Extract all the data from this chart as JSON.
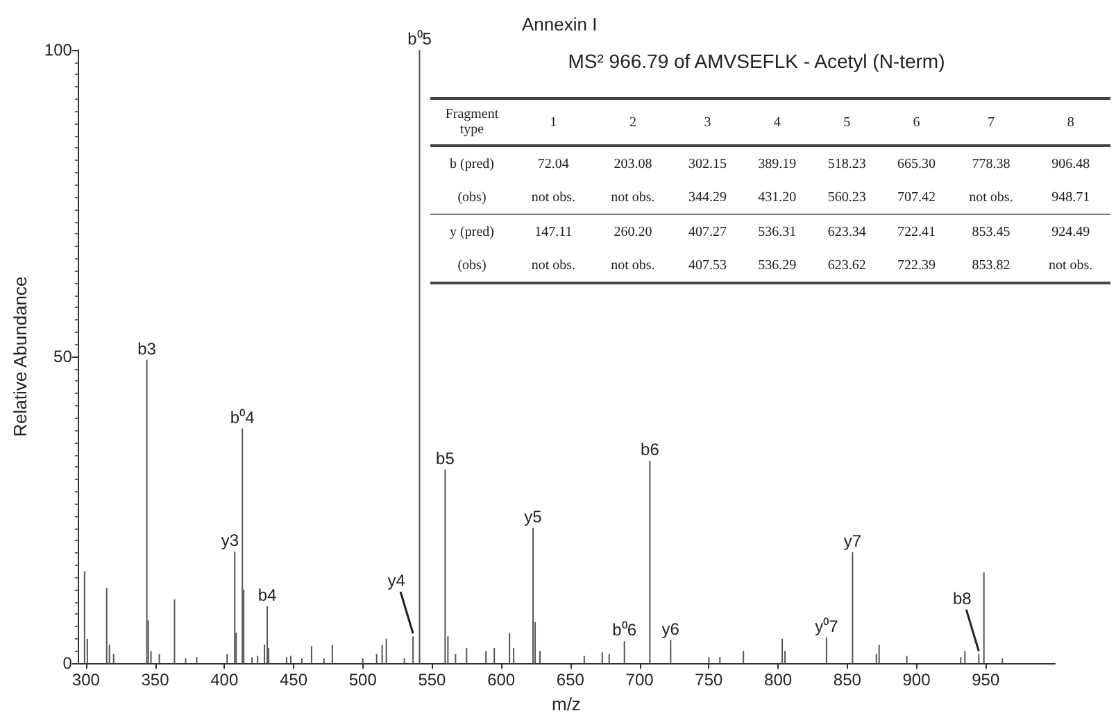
{
  "chart_data": {
    "type": "bar",
    "title": "Annexin I",
    "subtitle": "MS² 966.79 of AMVSEFLK - Acetyl (N-term)",
    "xlabel": "m/z",
    "ylabel": "Relative Abundance",
    "x": [
      299,
      301,
      315,
      317,
      320,
      344,
      345,
      347,
      353,
      364,
      372,
      380,
      402,
      407.5,
      408.5,
      413,
      414,
      420,
      424,
      429,
      431,
      432,
      445,
      448,
      456,
      463,
      472,
      478,
      500,
      510,
      514,
      517,
      530,
      536.3,
      540.5,
      541,
      559.5,
      561.5,
      567,
      575,
      589,
      595,
      606,
      609,
      623,
      624.5,
      628,
      660,
      673,
      678,
      689,
      706.5,
      707.4,
      722.4,
      750,
      758,
      775,
      803,
      805,
      835,
      853,
      853.8,
      871,
      873,
      893,
      932,
      935,
      945,
      948.7,
      962
    ],
    "values": [
      15,
      4,
      12.3,
      3,
      1.5,
      49.5,
      7,
      2,
      1.5,
      10.4,
      0.8,
      1,
      1.5,
      18.2,
      5,
      38.3,
      12,
      1,
      1.2,
      3,
      9.3,
      2.5,
      1,
      1.2,
      0.8,
      2.8,
      0.8,
      3,
      0.8,
      1.5,
      3,
      4,
      0.8,
      4.4,
      null,
      100,
      31.6,
      4.4,
      1.5,
      2.5,
      2,
      2.5,
      4.9,
      2.5,
      22.1,
      6.7,
      2,
      1.2,
      1.8,
      1.5,
      3.6,
      null,
      33,
      3.8,
      1,
      1,
      2,
      4,
      2,
      4.2,
      null,
      18.1,
      1.5,
      3,
      1.2,
      1,
      2,
      1.5,
      14.8,
      0.8
    ],
    "color": "#555555",
    "xlim": [
      294,
      1000
    ],
    "xticks": [
      300,
      350,
      400,
      450,
      500,
      550,
      600,
      650,
      700,
      750,
      800,
      850,
      900,
      950
    ],
    "ylim": [
      0,
      100
    ],
    "yticks": [
      0,
      50,
      100
    ],
    "grid": false,
    "annotations": [
      {
        "text": "b3",
        "x": 344,
        "y": 49.5
      },
      {
        "text": "y3",
        "x": 407.5,
        "y": 18.2
      },
      {
        "text": "b⁰4",
        "x": 413,
        "y": 38.3
      },
      {
        "text": "b4",
        "x": 431,
        "y": 9.3
      },
      {
        "text": "y4",
        "x": 536.3,
        "y": 4.4
      },
      {
        "text": "b⁰5",
        "x": 541,
        "y": 100
      },
      {
        "text": "b5",
        "x": 559.5,
        "y": 31.6
      },
      {
        "text": "y5",
        "x": 623,
        "y": 22.1
      },
      {
        "text": "b⁰6",
        "x": 689,
        "y": 3.6
      },
      {
        "text": "b6",
        "x": 707.4,
        "y": 33
      },
      {
        "text": "y6",
        "x": 722.4,
        "y": 3.8
      },
      {
        "text": "y⁰7",
        "x": 835,
        "y": 4.2
      },
      {
        "text": "y7",
        "x": 853.8,
        "y": 18.1
      },
      {
        "text": "b8",
        "x": 945,
        "y": 1.5
      },
      "Fragment type",
      "1",
      "2",
      "3",
      "4",
      "5",
      "6",
      "7",
      "8",
      "b (pred)",
      "72.04",
      "203.08",
      "302.15",
      "389.19",
      "518.23",
      "665.30",
      "778.38",
      "906.48",
      "(obs)",
      "not obs.",
      "not obs.",
      "344.29",
      "431.20",
      "560.23",
      "707.42",
      "not obs.",
      "948.71",
      "y (pred)",
      "147.11",
      "260.20",
      "407.27",
      "536.31",
      "623.34",
      "722.41",
      "853.45",
      "924.49",
      "(obs)",
      "not obs.",
      "not obs.",
      "407.53",
      "536.29",
      "623.62",
      "722.39",
      "853.82",
      "not obs."
    ]
  }
}
